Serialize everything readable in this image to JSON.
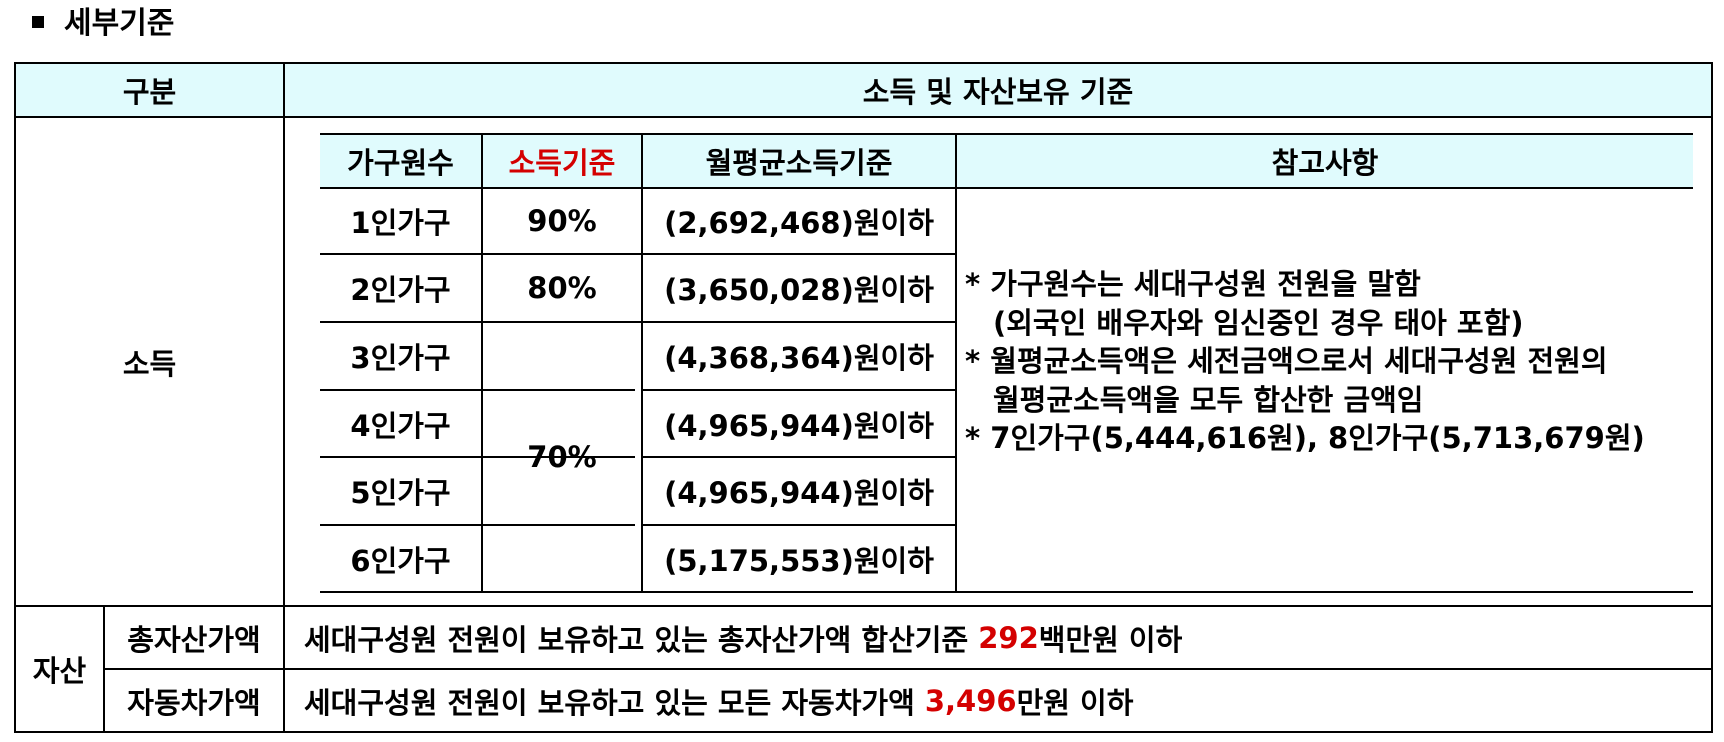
{
  "heading": "세부기준",
  "header": {
    "category": "구분",
    "criteria": "소득 및 자산보유 기준"
  },
  "income": {
    "label": "소득",
    "columns": [
      "가구원수",
      "소득기준",
      "월평균소득기준",
      "참고사항"
    ],
    "rows": [
      {
        "household": "1인가구",
        "amount": "(2,692,468)원이하"
      },
      {
        "household": "2인가구",
        "amount": "(3,650,028)원이하"
      },
      {
        "household": "3인가구",
        "amount": "(4,368,364)원이하"
      },
      {
        "household": "4인가구",
        "amount": "(4,965,944)원이하"
      },
      {
        "household": "5인가구",
        "amount": "(4,965,944)원이하"
      },
      {
        "household": "6인가구",
        "amount": "(5,175,553)원이하"
      }
    ],
    "percents": {
      "p1": "90%",
      "p2": "80%",
      "p3to6": "70%"
    },
    "notes": [
      "* 가구원수는 세대구성원 전원을 말함",
      "  (외국인 배우자와 임신중인 경우 태아 포함)",
      "* 월평균소득액은 세전금액으로서 세대구성원 전원의",
      "  월평균소득액을 모두 합산한 금액임",
      "* 7인가구(5,444,616원), 8인가구(5,713,679원)"
    ]
  },
  "assets": {
    "label": "자산",
    "total": {
      "label": "총자산가액",
      "text_before": "세대구성원 전원이 보유하고 있는 총자산가액 합산기준 ",
      "highlight": "292",
      "text_after": "백만원 이하"
    },
    "car": {
      "label": "자동차가액",
      "text_before": "세대구성원 전원이 보유하고 있는 모든 자동차가액 ",
      "highlight": "3,496",
      "text_after": "만원 이하"
    }
  },
  "colors": {
    "header_bg": "#e0fbfd",
    "highlight": "#d40000"
  }
}
